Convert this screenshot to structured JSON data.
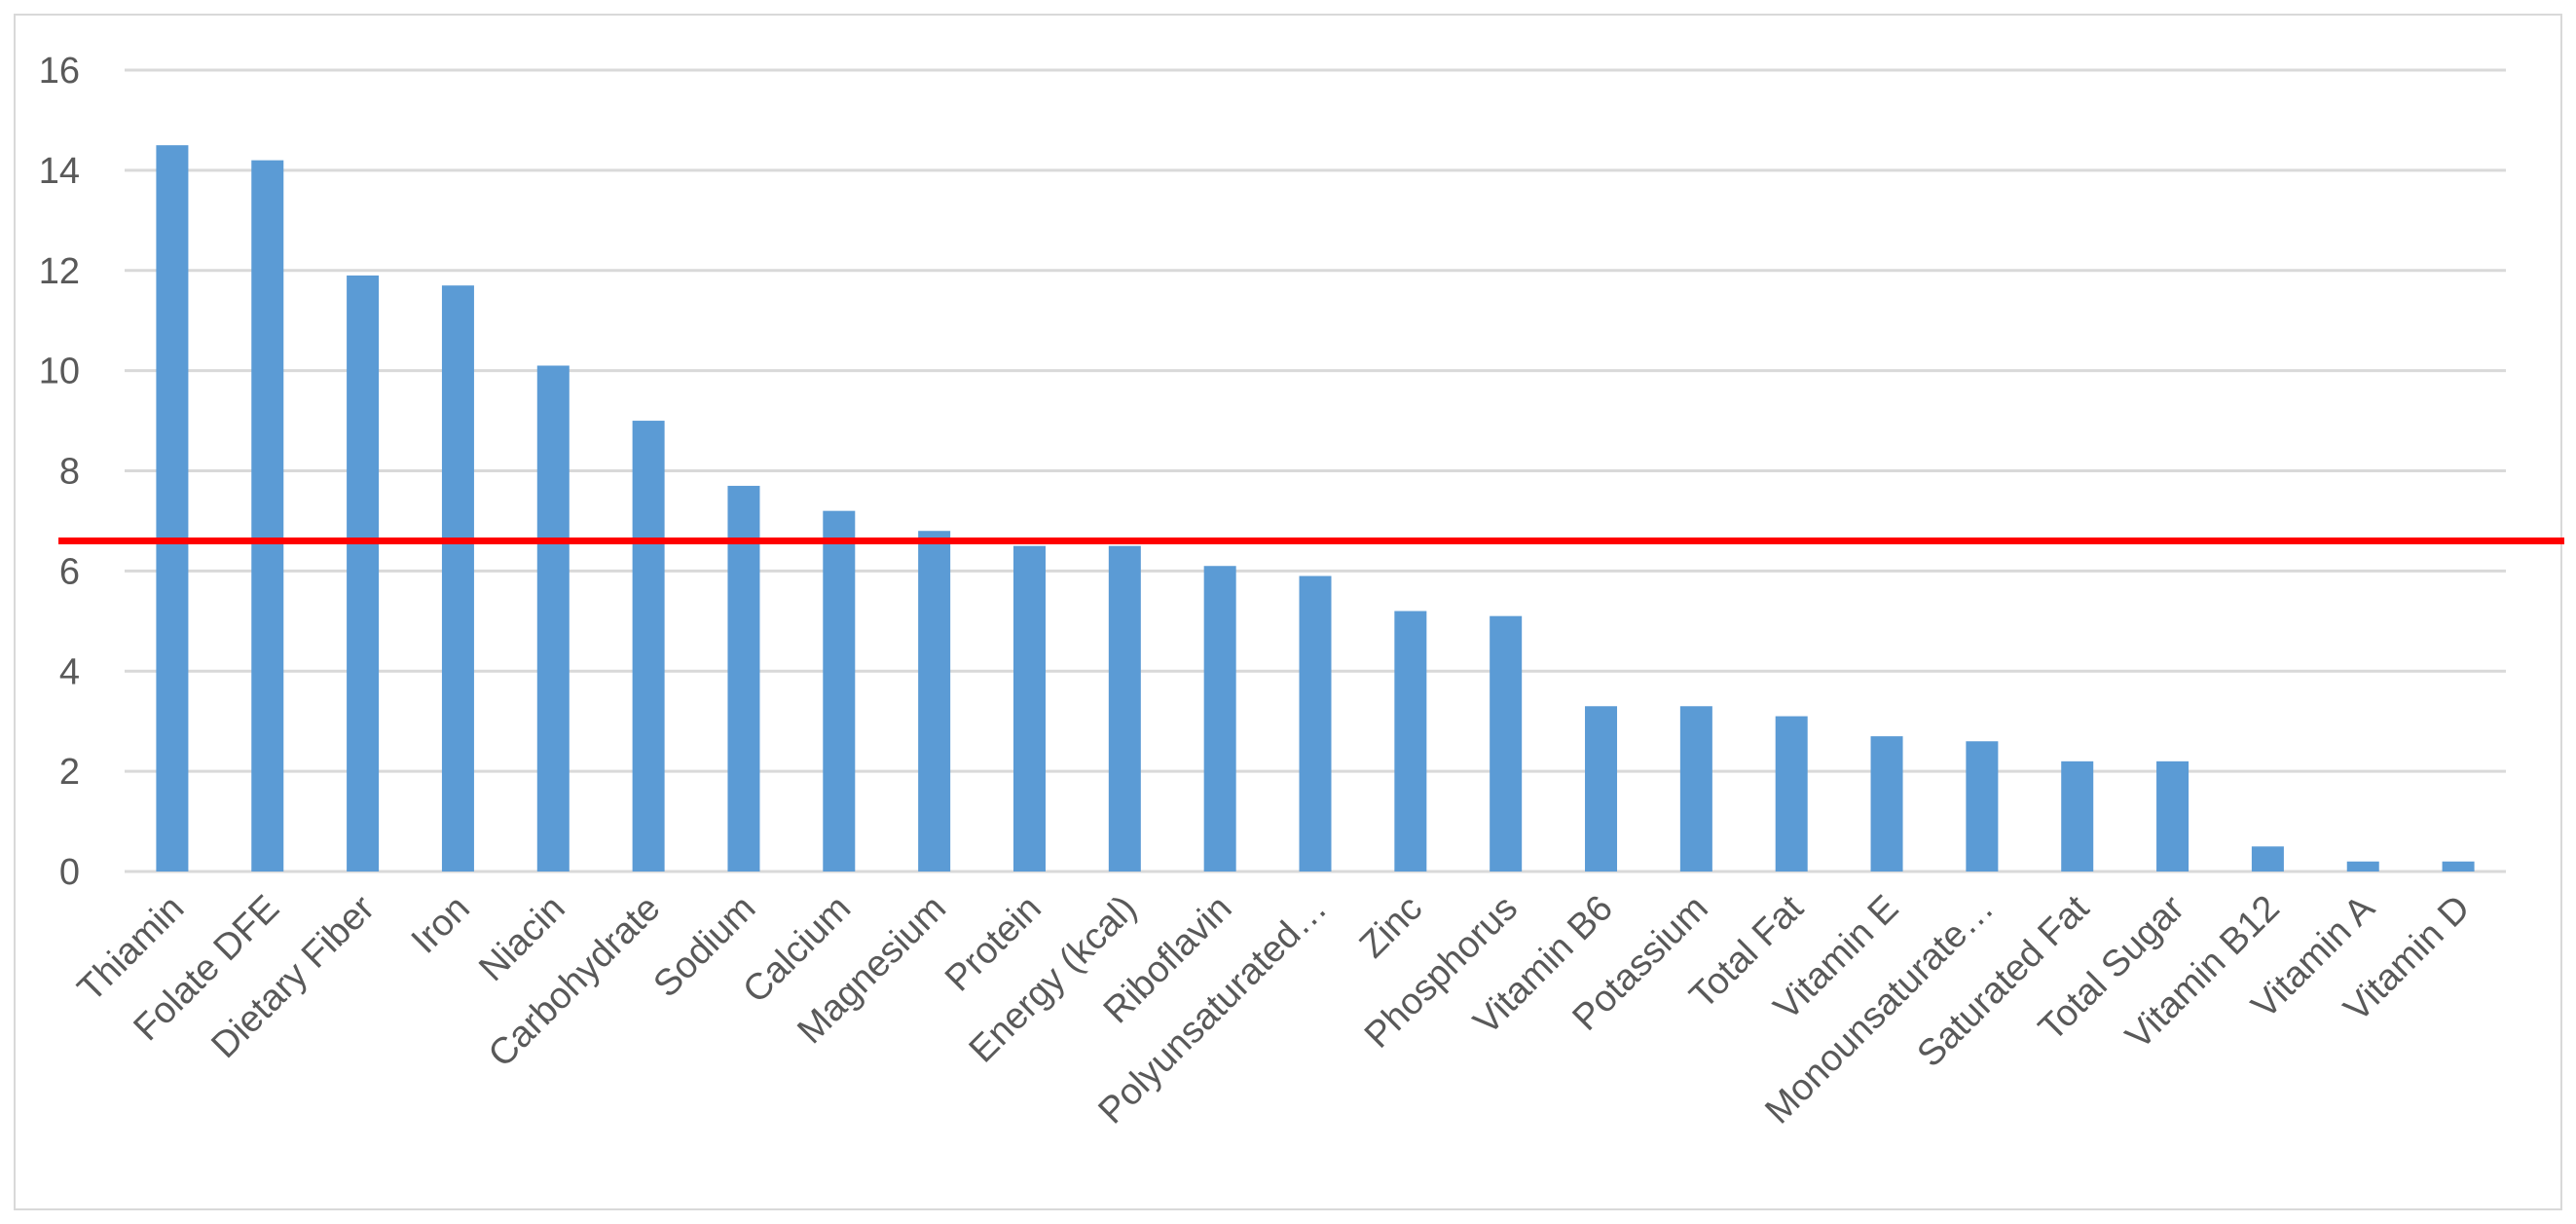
{
  "chart_data": {
    "type": "bar",
    "categories": [
      "Thiamin",
      "Folate DFE",
      "Dietary Fiber",
      "Iron",
      "Niacin",
      "Carbohydrate",
      "Sodium",
      "Calcium",
      "Magnesium",
      "Protein",
      "Energy (kcal)",
      "Riboflavin",
      "Polyunsaturated…",
      "Zinc",
      "Phosphorus",
      "Vitamin B6",
      "Potassium",
      "Total Fat",
      "Vitamin E",
      "Monounsaturate…",
      "Saturated Fat",
      "Total Sugar",
      "Vitamin B12",
      "Vitamin A",
      "Vitamin D"
    ],
    "values": [
      14.5,
      14.2,
      11.9,
      11.7,
      10.1,
      9.0,
      7.7,
      7.2,
      6.8,
      6.5,
      6.5,
      6.1,
      5.9,
      5.2,
      5.1,
      3.3,
      3.3,
      3.1,
      2.7,
      2.6,
      2.2,
      2.2,
      0.5,
      0.2,
      0.2
    ],
    "title": "",
    "xlabel": "",
    "ylabel": "",
    "ylim": [
      0,
      16
    ],
    "yticks": [
      "0",
      "2",
      "4",
      "6",
      "8",
      "10",
      "12",
      "14",
      "16"
    ],
    "grid": true,
    "reference_line": {
      "y": 6.6,
      "color": "#ff0000"
    },
    "bar_color": "#5b9bd5",
    "grid_color": "#d9d9d9",
    "axis_text_color": "#595959"
  }
}
